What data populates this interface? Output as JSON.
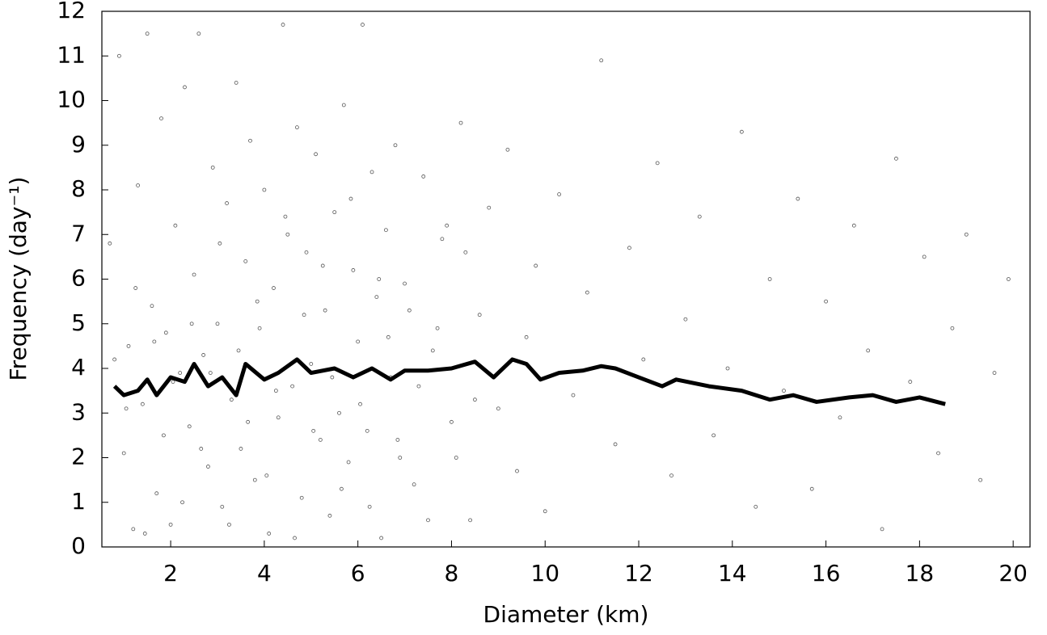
{
  "chart_data": {
    "type": "scatter",
    "x_label": "Diameter (km)",
    "y_label": "Frequency (day⁻¹)",
    "xlim": [
      0.53,
      20.36
    ],
    "ylim": [
      0,
      12
    ],
    "xticks": [
      2,
      4,
      6,
      8,
      10,
      12,
      14,
      16,
      18,
      20
    ],
    "yticks": [
      0,
      1,
      2,
      3,
      4,
      5,
      6,
      7,
      8,
      9,
      10,
      11,
      12
    ],
    "series": [
      {
        "type": "scatter",
        "color": "#555555",
        "x": [
          0.7,
          0.9,
          1.0,
          1.1,
          1.2,
          1.3,
          1.4,
          1.5,
          1.6,
          1.7,
          1.8,
          1.9,
          2.0,
          2.1,
          2.2,
          2.3,
          2.4,
          2.5,
          2.6,
          2.7,
          2.8,
          2.9,
          3.0,
          3.1,
          3.2,
          3.3,
          3.4,
          3.5,
          3.6,
          3.7,
          3.8,
          3.9,
          4.0,
          4.1,
          4.2,
          4.3,
          4.4,
          4.5,
          4.6,
          4.7,
          4.8,
          4.9,
          5.0,
          5.1,
          5.2,
          5.3,
          5.4,
          5.5,
          5.6,
          5.7,
          5.8,
          5.9,
          6.0,
          6.1,
          6.2,
          6.3,
          6.4,
          6.5,
          6.6,
          6.7,
          6.8,
          6.9,
          7.0,
          7.2,
          7.4,
          7.6,
          7.8,
          8.0,
          8.2,
          8.4,
          8.6,
          8.8,
          9.0,
          9.2,
          9.4,
          9.6,
          9.8,
          10.0,
          10.3,
          10.6,
          10.9,
          11.2,
          11.5,
          11.8,
          12.1,
          12.4,
          12.7,
          13.0,
          13.3,
          13.6,
          13.9,
          14.2,
          14.5,
          14.8,
          15.1,
          15.4,
          15.7,
          16.0,
          16.3,
          16.6,
          16.9,
          17.2,
          17.5,
          17.8,
          18.1,
          18.4,
          18.7,
          19.0,
          19.3,
          19.6,
          19.9,
          0.8,
          1.05,
          1.25,
          1.45,
          1.65,
          1.85,
          2.05,
          2.25,
          2.45,
          2.65,
          2.85,
          3.05,
          3.25,
          3.45,
          3.65,
          3.85,
          4.05,
          4.25,
          4.45,
          4.65,
          4.85,
          5.05,
          5.25,
          5.45,
          5.65,
          5.85,
          6.05,
          6.25,
          6.45,
          6.65,
          6.85,
          7.1,
          7.3,
          7.5,
          7.7,
          7.9,
          8.1,
          8.3,
          8.5
        ],
        "y": [
          6.8,
          11.0,
          2.1,
          4.5,
          0.4,
          8.1,
          3.2,
          11.5,
          5.4,
          1.2,
          9.6,
          4.8,
          0.5,
          7.2,
          3.9,
          10.3,
          2.7,
          6.1,
          11.5,
          4.3,
          1.8,
          8.5,
          5.0,
          0.9,
          7.7,
          3.3,
          10.4,
          2.2,
          6.4,
          9.1,
          1.5,
          4.9,
          8.0,
          0.3,
          5.8,
          2.9,
          11.7,
          7.0,
          3.6,
          9.4,
          1.1,
          6.6,
          4.1,
          8.8,
          2.4,
          5.3,
          0.7,
          7.5,
          3.0,
          9.9,
          1.9,
          6.2,
          4.6,
          11.7,
          2.6,
          8.4,
          5.6,
          0.2,
          7.1,
          3.8,
          9.0,
          2.0,
          5.9,
          1.4,
          8.3,
          4.4,
          6.9,
          2.8,
          9.5,
          0.6,
          5.2,
          7.6,
          3.1,
          8.9,
          1.7,
          4.7,
          6.3,
          0.8,
          7.9,
          3.4,
          5.7,
          10.9,
          2.3,
          6.7,
          4.2,
          8.6,
          1.6,
          5.1,
          7.4,
          2.5,
          4.0,
          9.3,
          0.9,
          6.0,
          3.5,
          7.8,
          1.3,
          5.5,
          2.9,
          7.2,
          4.4,
          0.4,
          8.7,
          3.7,
          6.5,
          2.1,
          4.9,
          7.0,
          1.5,
          3.9,
          6.0,
          4.2,
          3.1,
          5.8,
          0.3,
          4.6,
          2.5,
          3.7,
          1.0,
          5.0,
          2.2,
          3.9,
          6.8,
          0.5,
          4.4,
          2.8,
          5.5,
          1.6,
          3.5,
          7.4,
          0.2,
          5.2,
          2.6,
          6.3,
          3.8,
          1.3,
          7.8,
          3.2,
          0.9,
          6.0,
          4.7,
          2.4,
          5.3,
          3.6,
          0.6,
          4.9,
          7.2,
          2.0,
          6.6,
          3.3
        ]
      },
      {
        "type": "line",
        "color": "#000000",
        "x": [
          0.8,
          1.0,
          1.3,
          1.5,
          1.7,
          2.0,
          2.3,
          2.5,
          2.8,
          3.1,
          3.4,
          3.6,
          4.0,
          4.3,
          4.7,
          5.0,
          5.5,
          5.9,
          6.3,
          6.7,
          7.0,
          7.5,
          8.0,
          8.5,
          8.9,
          9.3,
          9.6,
          9.9,
          10.3,
          10.8,
          11.2,
          11.5,
          12.0,
          12.5,
          12.8,
          13.5,
          14.2,
          14.8,
          15.3,
          15.8,
          16.5,
          17.0,
          17.5,
          18.0,
          18.55
        ],
        "y": [
          3.6,
          3.4,
          3.5,
          3.75,
          3.4,
          3.8,
          3.7,
          4.1,
          3.6,
          3.8,
          3.4,
          4.1,
          3.75,
          3.9,
          4.2,
          3.9,
          4.0,
          3.8,
          4.0,
          3.75,
          3.95,
          3.95,
          4.0,
          4.15,
          3.8,
          4.2,
          4.1,
          3.75,
          3.9,
          3.95,
          4.05,
          4.0,
          3.8,
          3.6,
          3.75,
          3.6,
          3.5,
          3.3,
          3.4,
          3.25,
          3.35,
          3.4,
          3.25,
          3.35,
          3.2
        ]
      }
    ]
  }
}
